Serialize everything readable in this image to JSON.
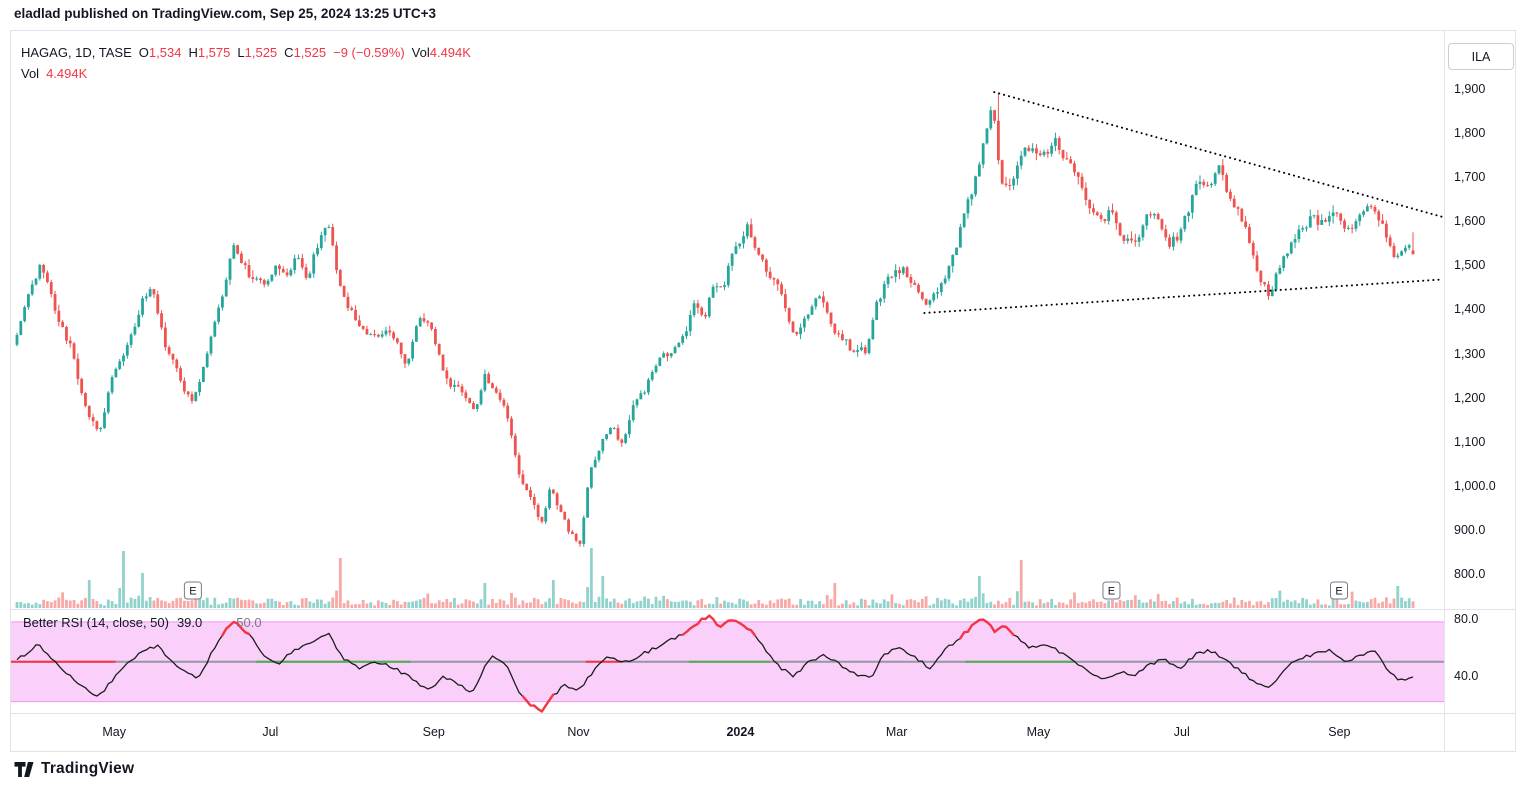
{
  "publish_bar": {
    "text": "eladlad published on TradingView.com, Sep 25, 2024 13:25 UTC+3"
  },
  "symbol_legend": {
    "title": "HAGAG, 1D, TASE",
    "ohlc": [
      {
        "label": "O",
        "value": "1,534"
      },
      {
        "label": "H",
        "value": "1,575"
      },
      {
        "label": "L",
        "value": "1,525"
      },
      {
        "label": "C",
        "value": "1,525"
      }
    ],
    "change": "−9 (−0.59%)",
    "vol_label": "Vol",
    "vol_value": "4.494K"
  },
  "volume_legend": {
    "label": "Vol",
    "value": "4.494K"
  },
  "price_scale_button": "ILA",
  "rsi_legend": {
    "title": "Better RSI (14, close, 50)",
    "value": "39.0",
    "mid_value": "50.0"
  },
  "footer": {
    "brand": "TradingView"
  },
  "colors": {
    "up": "#26a69a",
    "down": "#ef5350",
    "volume_up": "rgba(38,166,154,0.5)",
    "volume_down": "rgba(239,83,80,0.5)",
    "value_red": "#f23645",
    "text": "#131722",
    "muted": "#787b86",
    "border": "#e0e3eb",
    "rsi_band": "#f9c4f9",
    "rsi_band_edge": "#f096f0",
    "rsi_line": "#1c1c1c",
    "midline_gray": "#9598a1",
    "trendline": "#000000"
  },
  "chart_data": [
    {
      "type": "candlestick",
      "title": "HAGAG, 1D, TASE",
      "symbol": "HAGAG",
      "interval": "1D",
      "exchange": "TASE",
      "ylim": [
        760,
        1935
      ],
      "last_candle": {
        "open": 1534,
        "high": 1575,
        "low": 1525,
        "close": 1525
      },
      "last_change": -9,
      "last_change_pct": -0.59,
      "last_volume": "4.494K",
      "num_candles": 368,
      "price_ticks": [
        {
          "label": "1,900",
          "value": 1900
        },
        {
          "label": "1,800",
          "value": 1800
        },
        {
          "label": "1,700",
          "value": 1700
        },
        {
          "label": "1,600",
          "value": 1600
        },
        {
          "label": "1,500",
          "value": 1500
        },
        {
          "label": "1,400",
          "value": 1400
        },
        {
          "label": "1,300",
          "value": 1300
        },
        {
          "label": "1,200",
          "value": 1200
        },
        {
          "label": "1,100",
          "value": 1100
        },
        {
          "label": "1,000.0",
          "value": 1000
        },
        {
          "label": "900.0",
          "value": 900
        },
        {
          "label": "800.0",
          "value": 800
        }
      ],
      "time_ticks": [
        {
          "label": "May",
          "t": 0.072,
          "major": false
        },
        {
          "label": "Jul",
          "t": 0.181,
          "major": false
        },
        {
          "label": "Sep",
          "t": 0.295,
          "major": false
        },
        {
          "label": "Nov",
          "t": 0.396,
          "major": false
        },
        {
          "label": "2024",
          "t": 0.509,
          "major": true
        },
        {
          "label": "Mar",
          "t": 0.618,
          "major": false
        },
        {
          "label": "May",
          "t": 0.717,
          "major": false
        },
        {
          "label": "Jul",
          "t": 0.817,
          "major": false
        },
        {
          "label": "Sep",
          "t": 0.927,
          "major": false
        }
      ],
      "price_path": [
        [
          0.0,
          1320
        ],
        [
          0.009,
          1420
        ],
        [
          0.019,
          1500
        ],
        [
          0.031,
          1400
        ],
        [
          0.042,
          1320
        ],
        [
          0.052,
          1200
        ],
        [
          0.062,
          1120
        ],
        [
          0.07,
          1230
        ],
        [
          0.081,
          1300
        ],
        [
          0.092,
          1420
        ],
        [
          0.1,
          1460
        ],
        [
          0.11,
          1330
        ],
        [
          0.119,
          1250
        ],
        [
          0.129,
          1190
        ],
        [
          0.138,
          1280
        ],
        [
          0.148,
          1420
        ],
        [
          0.158,
          1540
        ],
        [
          0.165,
          1500
        ],
        [
          0.174,
          1470
        ],
        [
          0.181,
          1440
        ],
        [
          0.188,
          1500
        ],
        [
          0.197,
          1470
        ],
        [
          0.204,
          1520
        ],
        [
          0.211,
          1470
        ],
        [
          0.219,
          1560
        ],
        [
          0.225,
          1610
        ],
        [
          0.232,
          1480
        ],
        [
          0.239,
          1400
        ],
        [
          0.248,
          1360
        ],
        [
          0.258,
          1340
        ],
        [
          0.266,
          1355
        ],
        [
          0.275,
          1325
        ],
        [
          0.282,
          1280
        ],
        [
          0.291,
          1380
        ],
        [
          0.299,
          1345
        ],
        [
          0.308,
          1250
        ],
        [
          0.317,
          1215
        ],
        [
          0.324,
          1180
        ],
        [
          0.331,
          1155
        ],
        [
          0.338,
          1245
        ],
        [
          0.345,
          1215
        ],
        [
          0.354,
          1160
        ],
        [
          0.362,
          1045
        ],
        [
          0.371,
          975
        ],
        [
          0.378,
          905
        ],
        [
          0.385,
          1000
        ],
        [
          0.392,
          945
        ],
        [
          0.399,
          890
        ],
        [
          0.406,
          868
        ],
        [
          0.413,
          1040
        ],
        [
          0.421,
          1095
        ],
        [
          0.429,
          1145
        ],
        [
          0.436,
          1095
        ],
        [
          0.445,
          1170
        ],
        [
          0.453,
          1200
        ],
        [
          0.462,
          1280
        ],
        [
          0.47,
          1305
        ],
        [
          0.479,
          1350
        ],
        [
          0.488,
          1420
        ],
        [
          0.495,
          1385
        ],
        [
          0.502,
          1450
        ],
        [
          0.51,
          1480
        ],
        [
          0.519,
          1555
        ],
        [
          0.526,
          1618
        ],
        [
          0.532,
          1560
        ],
        [
          0.539,
          1515
        ],
        [
          0.546,
          1450
        ],
        [
          0.553,
          1400
        ],
        [
          0.56,
          1330
        ],
        [
          0.568,
          1385
        ],
        [
          0.575,
          1420
        ],
        [
          0.582,
          1400
        ],
        [
          0.589,
          1350
        ],
        [
          0.596,
          1330
        ],
        [
          0.603,
          1300
        ],
        [
          0.611,
          1285
        ],
        [
          0.618,
          1420
        ],
        [
          0.625,
          1460
        ],
        [
          0.632,
          1480
        ],
        [
          0.639,
          1490
        ],
        [
          0.646,
          1450
        ],
        [
          0.654,
          1400
        ],
        [
          0.661,
          1425
        ],
        [
          0.668,
          1465
        ],
        [
          0.675,
          1505
        ],
        [
          0.682,
          1620
        ],
        [
          0.69,
          1705
        ],
        [
          0.697,
          1810
        ],
        [
          0.702,
          1870
        ],
        [
          0.707,
          1720
        ],
        [
          0.713,
          1685
        ],
        [
          0.719,
          1725
        ],
        [
          0.725,
          1760
        ],
        [
          0.732,
          1745
        ],
        [
          0.739,
          1762
        ],
        [
          0.746,
          1782
        ],
        [
          0.753,
          1742
        ],
        [
          0.76,
          1700
        ],
        [
          0.766,
          1652
        ],
        [
          0.773,
          1622
        ],
        [
          0.78,
          1580
        ],
        [
          0.787,
          1622
        ],
        [
          0.794,
          1552
        ],
        [
          0.801,
          1562
        ],
        [
          0.808,
          1600
        ],
        [
          0.815,
          1622
        ],
        [
          0.821,
          1600
        ],
        [
          0.828,
          1542
        ],
        [
          0.835,
          1562
        ],
        [
          0.842,
          1622
        ],
        [
          0.849,
          1680
        ],
        [
          0.857,
          1662
        ],
        [
          0.864,
          1700
        ],
        [
          0.871,
          1642
        ],
        [
          0.878,
          1600
        ],
        [
          0.885,
          1540
        ],
        [
          0.892,
          1462
        ],
        [
          0.9,
          1425
        ],
        [
          0.907,
          1482
        ],
        [
          0.914,
          1540
        ],
        [
          0.921,
          1562
        ],
        [
          0.928,
          1600
        ],
        [
          0.935,
          1582
        ],
        [
          0.942,
          1622
        ],
        [
          0.949,
          1602
        ],
        [
          0.957,
          1582
        ],
        [
          0.964,
          1622
        ],
        [
          0.971,
          1650
        ],
        [
          0.978,
          1600
        ],
        [
          0.984,
          1540
        ],
        [
          0.989,
          1500
        ],
        [
          1.0,
          1528
        ]
      ],
      "volume": {
        "display": "overlay-bottom",
        "spikes": [
          [
            0.053,
            28,
            "up"
          ],
          [
            0.075,
            57,
            "up"
          ],
          [
            0.09,
            35,
            "up"
          ],
          [
            0.127,
            22,
            "down"
          ],
          [
            0.232,
            50,
            "down"
          ],
          [
            0.335,
            25,
            "up"
          ],
          [
            0.383,
            28,
            "up"
          ],
          [
            0.412,
            60,
            "up"
          ],
          [
            0.42,
            32,
            "up"
          ],
          [
            0.585,
            25,
            "down"
          ],
          [
            0.69,
            32,
            "up"
          ],
          [
            0.72,
            48,
            "down"
          ],
          [
            0.99,
            22,
            "up"
          ]
        ]
      },
      "earnings_markers": {
        "label": "E",
        "positions": [
          0.126,
          0.784,
          0.947
        ]
      },
      "trendlines": [
        {
          "x1": 0.7,
          "y1": 1893,
          "x2": 1.021,
          "y2": 1610,
          "style": "dotted"
        },
        {
          "x1": 0.65,
          "y1": 1392,
          "x2": 1.021,
          "y2": 1468,
          "style": "dotted"
        }
      ]
    },
    {
      "type": "line",
      "title": "Better RSI (14, close, 50)",
      "current_value": 39.0,
      "mid_value": 50,
      "ylim": [
        14,
        87
      ],
      "ticks": [
        {
          "label": "80.0",
          "value": 80
        },
        {
          "label": "40.0",
          "value": 40
        }
      ],
      "band": [
        22,
        78
      ],
      "red_thresholds": {
        "upper": 70,
        "lower": 24
      },
      "midline_segments": [
        {
          "from": 0.0,
          "to": 0.073,
          "color": "#f23645"
        },
        {
          "from": 0.171,
          "to": 0.279,
          "color": "#4caf50"
        },
        {
          "from": 0.401,
          "to": 0.426,
          "color": "#f23645"
        },
        {
          "from": 0.473,
          "to": 0.53,
          "color": "#4caf50"
        },
        {
          "from": 0.666,
          "to": 0.743,
          "color": "#4caf50"
        }
      ],
      "path": [
        [
          0.001,
          52
        ],
        [
          0.015,
          62
        ],
        [
          0.029,
          48
        ],
        [
          0.044,
          35
        ],
        [
          0.058,
          25
        ],
        [
          0.072,
          42
        ],
        [
          0.087,
          55
        ],
        [
          0.101,
          62
        ],
        [
          0.115,
          45
        ],
        [
          0.13,
          38
        ],
        [
          0.144,
          65
        ],
        [
          0.155,
          78
        ],
        [
          0.166,
          70
        ],
        [
          0.176,
          55
        ],
        [
          0.187,
          48
        ],
        [
          0.198,
          58
        ],
        [
          0.212,
          65
        ],
        [
          0.223,
          70
        ],
        [
          0.234,
          52
        ],
        [
          0.245,
          45
        ],
        [
          0.255,
          50
        ],
        [
          0.266,
          47
        ],
        [
          0.277,
          42
        ],
        [
          0.288,
          34
        ],
        [
          0.296,
          30
        ],
        [
          0.306,
          40
        ],
        [
          0.316,
          34
        ],
        [
          0.326,
          28
        ],
        [
          0.334,
          45
        ],
        [
          0.341,
          54
        ],
        [
          0.35,
          48
        ],
        [
          0.359,
          30
        ],
        [
          0.368,
          20
        ],
        [
          0.375,
          15
        ],
        [
          0.382,
          24
        ],
        [
          0.392,
          34
        ],
        [
          0.402,
          29
        ],
        [
          0.413,
          44
        ],
        [
          0.424,
          54
        ],
        [
          0.435,
          49
        ],
        [
          0.447,
          55
        ],
        [
          0.458,
          60
        ],
        [
          0.468,
          65
        ],
        [
          0.479,
          70
        ],
        [
          0.489,
          78
        ],
        [
          0.496,
          83
        ],
        [
          0.504,
          74
        ],
        [
          0.511,
          80
        ],
        [
          0.518,
          77
        ],
        [
          0.526,
          71
        ],
        [
          0.535,
          60
        ],
        [
          0.546,
          46
        ],
        [
          0.557,
          40
        ],
        [
          0.567,
          50
        ],
        [
          0.578,
          55
        ],
        [
          0.589,
          48
        ],
        [
          0.6,
          42
        ],
        [
          0.611,
          38
        ],
        [
          0.621,
          55
        ],
        [
          0.632,
          60
        ],
        [
          0.643,
          54
        ],
        [
          0.654,
          45
        ],
        [
          0.664,
          58
        ],
        [
          0.675,
          66
        ],
        [
          0.684,
          75
        ],
        [
          0.691,
          81
        ],
        [
          0.7,
          72
        ],
        [
          0.707,
          76
        ],
        [
          0.716,
          67
        ],
        [
          0.725,
          60
        ],
        [
          0.736,
          62
        ],
        [
          0.747,
          57
        ],
        [
          0.758,
          50
        ],
        [
          0.768,
          42
        ],
        [
          0.779,
          37
        ],
        [
          0.79,
          43
        ],
        [
          0.801,
          40
        ],
        [
          0.811,
          48
        ],
        [
          0.822,
          52
        ],
        [
          0.833,
          45
        ],
        [
          0.844,
          55
        ],
        [
          0.854,
          58
        ],
        [
          0.865,
          52
        ],
        [
          0.876,
          44
        ],
        [
          0.887,
          35
        ],
        [
          0.897,
          31
        ],
        [
          0.908,
          45
        ],
        [
          0.919,
          52
        ],
        [
          0.93,
          56
        ],
        [
          0.94,
          58
        ],
        [
          0.951,
          50
        ],
        [
          0.962,
          55
        ],
        [
          0.973,
          58
        ],
        [
          0.983,
          42
        ],
        [
          0.991,
          37
        ],
        [
          0.998,
          39
        ]
      ]
    }
  ]
}
